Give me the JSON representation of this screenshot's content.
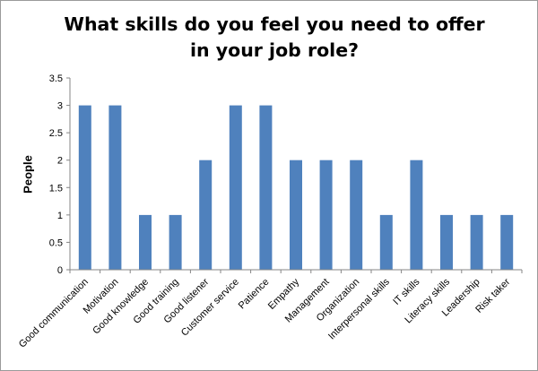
{
  "chart_data": {
    "type": "bar",
    "title": "What skills do you feel you need to offer in your job role?",
    "xlabel": "",
    "ylabel": "People",
    "ylim": [
      0,
      3.5
    ],
    "yticks": [
      "0",
      "0.5",
      "1",
      "1.5",
      "2",
      "2.5",
      "3",
      "3.5"
    ],
    "grid": false,
    "legend": "none",
    "bar_color": "#4F81BD",
    "categories": [
      "Good communication",
      "Motivation",
      "Good knowledge",
      "Good training",
      "Good listener",
      "Customer service",
      "Patience",
      "Empathy",
      "Management",
      "Organization",
      "Interpersonal skills",
      "IT skills",
      "Literacy skills",
      "Leadership",
      "Risk taker"
    ],
    "values": [
      3,
      3,
      1,
      1,
      2,
      3,
      3,
      2,
      2,
      2,
      1,
      2,
      1,
      1,
      1
    ]
  }
}
